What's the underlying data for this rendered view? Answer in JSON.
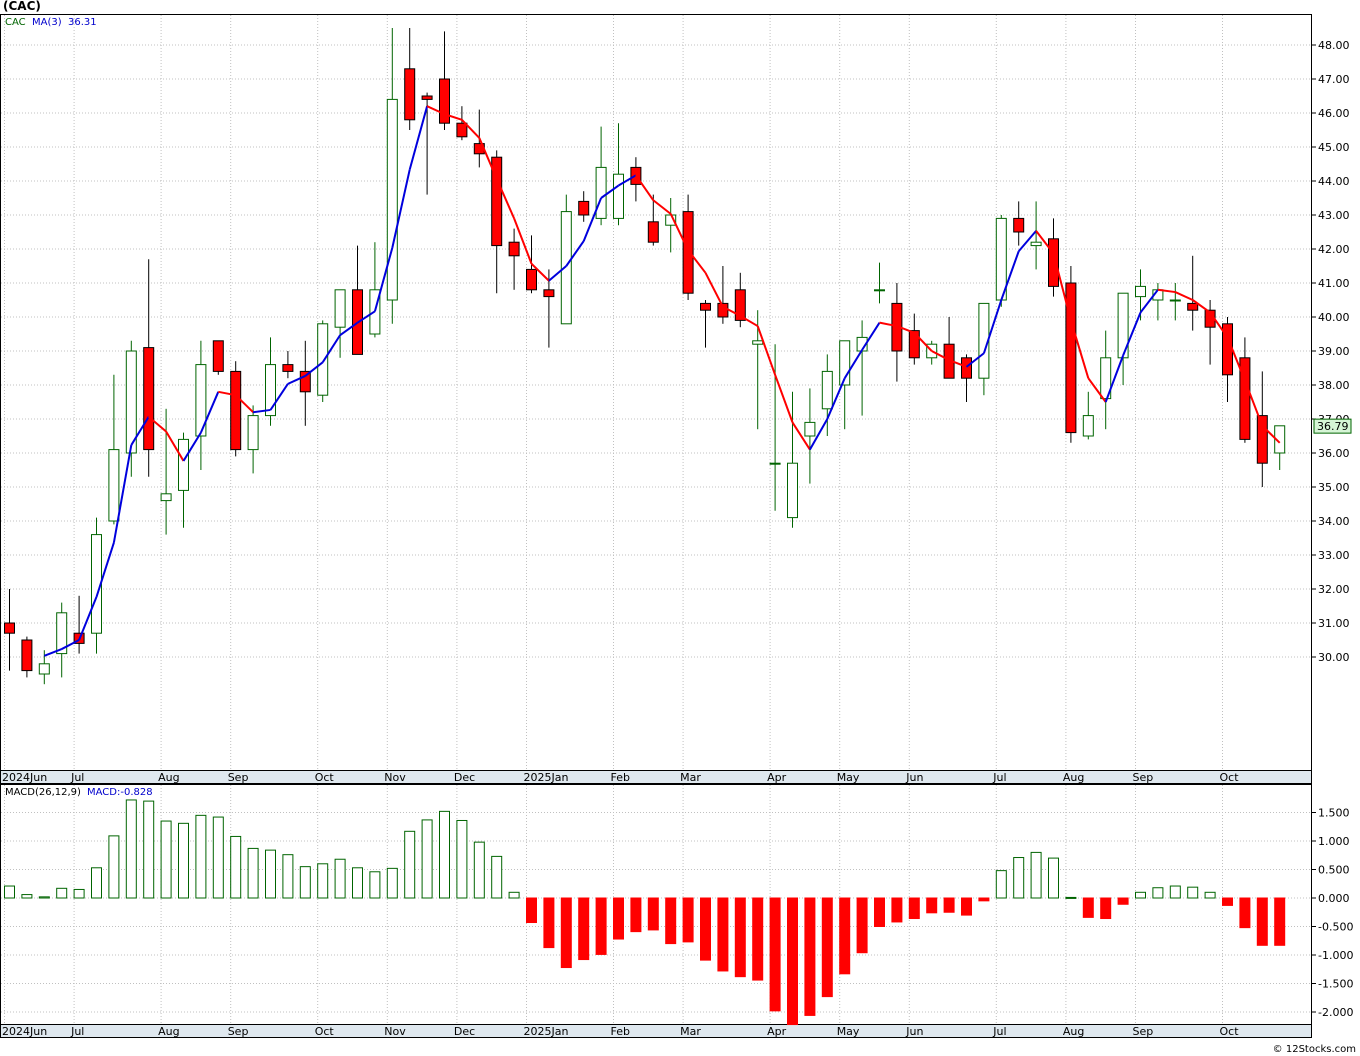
{
  "title": "(CAC)",
  "watermark": "© 12Stocks.com",
  "colors": {
    "up": "#006400",
    "down": "#ff0000",
    "ma_up": "#0000dd",
    "ma_down": "#ff0000",
    "grid": "#c0c0c0",
    "axisbar": "#dfe8ef",
    "legend_text": "#0000cc",
    "price_box": "#d6f5d6"
  },
  "price_panel": {
    "legend": [
      "CAC",
      "MA(3)",
      "36.31"
    ],
    "y_ticks": [
      "48.00",
      "47.00",
      "46.00",
      "45.00",
      "44.00",
      "43.00",
      "42.00",
      "41.00",
      "40.00",
      "39.00",
      "38.00",
      "37.00",
      "36.00",
      "35.00",
      "34.00",
      "33.00",
      "32.00",
      "31.00",
      "30.00"
    ],
    "price_label": "36.79"
  },
  "macd_panel": {
    "legend": [
      "MACD(26,12,9)",
      "MACD:-0.828"
    ],
    "y_ticks": [
      "1.500",
      "1.000",
      "0.500",
      "0.000",
      "-0.500",
      "-1.000",
      "-1.500",
      "-2.000"
    ]
  },
  "x_axis": {
    "labels": [
      "2024Jun",
      "Jul",
      "Aug",
      "Sep",
      "Oct",
      "Nov",
      "Dec",
      "2025Jan",
      "Feb",
      "Mar",
      "Apr",
      "May",
      "Jun",
      "Jul",
      "Aug",
      "Sep",
      "Oct"
    ],
    "label_week_index": [
      0,
      4,
      9,
      13,
      18,
      22,
      26,
      30,
      35,
      39,
      44,
      48,
      52,
      57,
      61,
      65,
      70
    ]
  },
  "chart_data": [
    {
      "type": "candlestick",
      "series_name": "CAC",
      "interval": "weekly",
      "start": "2024-06-03",
      "ohlc": [
        [
          31.0,
          32.0,
          29.6,
          30.7
        ],
        [
          30.5,
          30.6,
          29.4,
          29.6
        ],
        [
          29.5,
          30.2,
          29.2,
          29.8
        ],
        [
          30.1,
          31.6,
          29.4,
          31.3
        ],
        [
          30.7,
          31.8,
          30.1,
          30.4
        ],
        [
          30.7,
          34.1,
          30.1,
          33.6
        ],
        [
          34.0,
          38.3,
          33.9,
          36.1
        ],
        [
          36.0,
          39.3,
          35.3,
          39.0
        ],
        [
          39.1,
          41.7,
          35.3,
          36.1
        ],
        [
          34.6,
          37.3,
          33.6,
          34.8
        ],
        [
          34.9,
          36.6,
          33.8,
          36.4
        ],
        [
          36.5,
          39.3,
          35.5,
          38.6
        ],
        [
          39.3,
          39.3,
          38.3,
          38.4
        ],
        [
          38.4,
          38.7,
          35.9,
          36.1
        ],
        [
          36.1,
          37.4,
          35.4,
          37.1
        ],
        [
          37.1,
          39.4,
          36.8,
          38.6
        ],
        [
          38.6,
          39.0,
          38.2,
          38.4
        ],
        [
          38.4,
          39.3,
          36.8,
          37.8
        ],
        [
          37.7,
          39.9,
          37.5,
          39.8
        ],
        [
          39.7,
          40.8,
          38.8,
          40.8
        ],
        [
          40.8,
          42.1,
          38.9,
          38.9
        ],
        [
          39.5,
          42.2,
          39.4,
          40.8
        ],
        [
          40.5,
          48.5,
          39.8,
          46.4
        ],
        [
          47.3,
          48.5,
          45.5,
          45.8
        ],
        [
          46.5,
          46.6,
          43.6,
          46.4
        ],
        [
          47.0,
          48.4,
          45.5,
          45.7
        ],
        [
          45.7,
          46.2,
          45.2,
          45.3
        ],
        [
          45.1,
          46.1,
          44.4,
          44.8
        ],
        [
          44.7,
          44.9,
          40.7,
          42.1
        ],
        [
          42.2,
          42.6,
          40.8,
          41.8
        ],
        [
          41.4,
          42.4,
          40.7,
          40.8
        ],
        [
          40.8,
          41.4,
          39.1,
          40.6
        ],
        [
          39.8,
          43.6,
          39.8,
          43.1
        ],
        [
          43.4,
          43.7,
          42.8,
          43.0
        ],
        [
          42.9,
          45.6,
          42.7,
          44.4
        ],
        [
          42.9,
          45.7,
          42.7,
          44.2
        ],
        [
          44.4,
          44.7,
          43.4,
          43.9
        ],
        [
          42.8,
          43.6,
          42.1,
          42.2
        ],
        [
          42.7,
          43.5,
          41.9,
          43.0
        ],
        [
          43.1,
          43.6,
          40.5,
          40.7
        ],
        [
          40.4,
          40.5,
          39.1,
          40.2
        ],
        [
          40.4,
          41.5,
          39.8,
          40.0
        ],
        [
          40.8,
          41.3,
          39.7,
          39.9
        ],
        [
          39.2,
          40.2,
          36.7,
          39.3
        ],
        [
          35.7,
          39.2,
          34.3,
          35.7
        ],
        [
          34.1,
          37.8,
          33.8,
          35.7
        ],
        [
          36.5,
          37.9,
          35.1,
          36.9
        ],
        [
          37.3,
          38.9,
          36.5,
          38.4
        ],
        [
          38.0,
          39.3,
          36.7,
          39.3
        ],
        [
          39.0,
          39.9,
          37.1,
          39.4
        ],
        [
          40.8,
          41.6,
          40.4,
          40.8
        ],
        [
          40.4,
          41.0,
          38.1,
          39.0
        ],
        [
          39.6,
          40.1,
          38.6,
          38.8
        ],
        [
          38.8,
          39.3,
          38.6,
          39.2
        ],
        [
          39.2,
          40.0,
          38.2,
          38.2
        ],
        [
          38.8,
          38.9,
          37.5,
          38.2
        ],
        [
          38.2,
          40.3,
          37.7,
          40.4
        ],
        [
          40.5,
          43.0,
          40.3,
          42.9
        ],
        [
          42.9,
          43.4,
          42.1,
          42.5
        ],
        [
          42.1,
          43.4,
          41.4,
          42.2
        ],
        [
          42.3,
          42.9,
          40.6,
          40.9
        ],
        [
          41.0,
          41.5,
          36.3,
          36.6
        ],
        [
          36.5,
          37.8,
          36.4,
          37.1
        ],
        [
          37.6,
          39.6,
          36.7,
          38.8
        ],
        [
          38.8,
          40.7,
          38.0,
          40.7
        ],
        [
          40.6,
          41.4,
          39.9,
          40.9
        ],
        [
          40.5,
          41.0,
          39.9,
          40.8
        ],
        [
          40.5,
          41.0,
          39.9,
          40.5
        ],
        [
          40.4,
          41.8,
          39.6,
          40.2
        ],
        [
          40.2,
          40.5,
          38.6,
          39.7
        ],
        [
          39.8,
          40.0,
          37.5,
          38.3
        ],
        [
          38.8,
          39.4,
          36.3,
          36.4
        ],
        [
          37.1,
          38.4,
          35.0,
          35.7
        ],
        [
          36.0,
          36.8,
          35.5,
          36.8
        ]
      ],
      "overlay": {
        "name": "MA(3)",
        "last": 36.31
      }
    },
    {
      "type": "bar",
      "series_name": "MACD(26,12,9)",
      "last": -0.828,
      "values": [
        0.21,
        0.06,
        0.02,
        0.17,
        0.15,
        0.53,
        1.09,
        1.72,
        1.7,
        1.35,
        1.31,
        1.45,
        1.42,
        1.08,
        0.87,
        0.84,
        0.76,
        0.55,
        0.6,
        0.68,
        0.53,
        0.46,
        0.52,
        1.17,
        1.37,
        1.52,
        1.36,
        0.98,
        0.73,
        0.1,
        -0.43,
        -0.87,
        -1.22,
        -1.08,
        -0.99,
        -0.72,
        -0.59,
        -0.56,
        -0.8,
        -0.77,
        -1.09,
        -1.28,
        -1.38,
        -1.44,
        -1.98,
        -2.22,
        -2.06,
        -1.73,
        -1.33,
        -0.96,
        -0.5,
        -0.42,
        -0.36,
        -0.26,
        -0.25,
        -0.3,
        -0.05,
        0.48,
        0.71,
        0.8,
        0.7,
        0.01,
        -0.34,
        -0.36,
        -0.11,
        0.1,
        0.18,
        0.21,
        0.19,
        0.1,
        -0.13,
        -0.52,
        -0.83,
        -0.83
      ]
    }
  ]
}
